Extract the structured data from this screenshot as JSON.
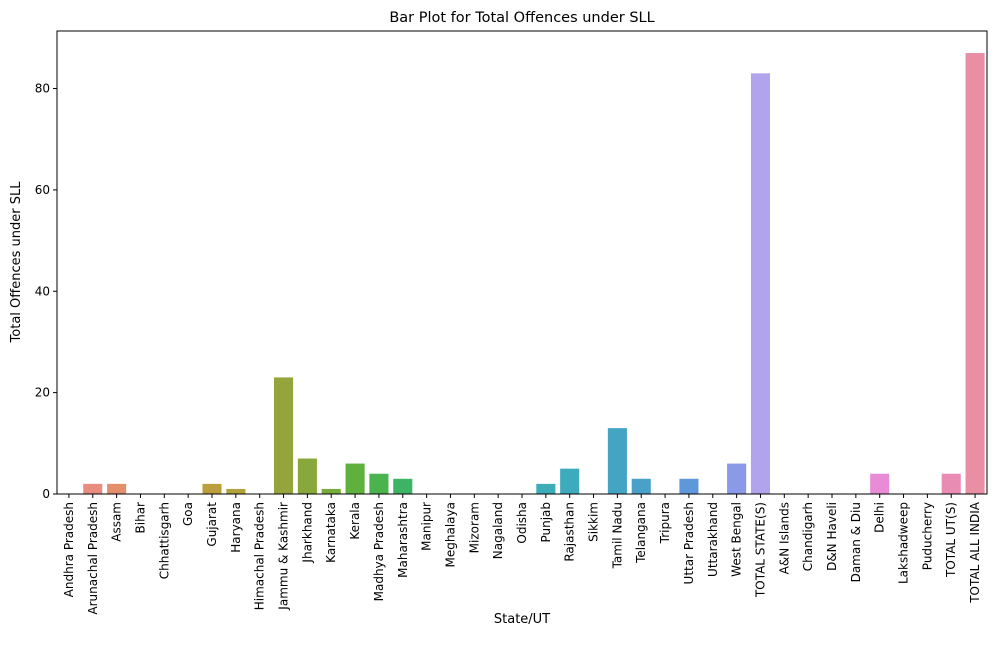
{
  "chart_data": {
    "type": "bar",
    "title": "Bar Plot for Total Offences under SLL",
    "xlabel": "State/UT",
    "ylabel": "Total Offences under SLL",
    "ylim": [
      0,
      91.35
    ],
    "yticks": [
      0,
      20,
      40,
      60,
      80
    ],
    "grid": false,
    "categories": [
      "Andhra Pradesh",
      "Arunachal Pradesh",
      "Assam",
      "Bihar",
      "Chhattisgarh",
      "Goa",
      "Gujarat",
      "Haryana",
      "Himachal Pradesh",
      "Jammu & Kashmir",
      "Jharkhand",
      "Karnataka",
      "Kerala",
      "Madhya Pradesh",
      "Maharashtra",
      "Manipur",
      "Meghalaya",
      "Mizoram",
      "Nagaland",
      "Odisha",
      "Punjab",
      "Rajasthan",
      "Sikkim",
      "Tamil Nadu",
      "Telangana",
      "Tripura",
      "Uttar Pradesh",
      "Uttarakhand",
      "West Bengal",
      "TOTAL STATE(S)",
      "A&N Islands",
      "Chandigarh",
      "D&N Haveli",
      "Daman & Diu",
      "Delhi",
      "Lakshadweep",
      "Puducherry",
      "TOTAL UT(S)",
      "TOTAL ALL INDIA"
    ],
    "values": [
      0,
      2,
      2,
      0,
      0,
      0,
      2,
      1,
      0,
      23,
      7,
      1,
      6,
      4,
      3,
      0,
      0,
      0,
      0,
      0,
      2,
      5,
      0,
      13,
      3,
      0,
      3,
      0,
      6,
      83,
      0,
      0,
      0,
      0,
      4,
      0,
      0,
      4,
      87
    ],
    "colors": [
      "#ea8d86",
      "#e98c80",
      "#e48e6c",
      "#dc9152",
      "#d2963c",
      "#c89b3c",
      "#bc9f3c",
      "#b0a33c",
      "#a4a63c",
      "#96a43c",
      "#88a83c",
      "#77ac3c",
      "#5eb13c",
      "#4ab34e",
      "#3db463",
      "#3cb376",
      "#3cb387",
      "#3cb297",
      "#3cb1a4",
      "#3cafb0",
      "#3cadb8",
      "#3eaabd",
      "#41a7c0",
      "#44a4c4",
      "#49a0c9",
      "#509cd0",
      "#5e98d9",
      "#7196e0",
      "#8a9ae8",
      "#b1a4ec",
      "#c399ea",
      "#cf92e8",
      "#db8ce6",
      "#e78be2",
      "#e98cd8",
      "#e98ccc",
      "#e98cbf",
      "#e98cb3",
      "#e88fa6"
    ]
  }
}
